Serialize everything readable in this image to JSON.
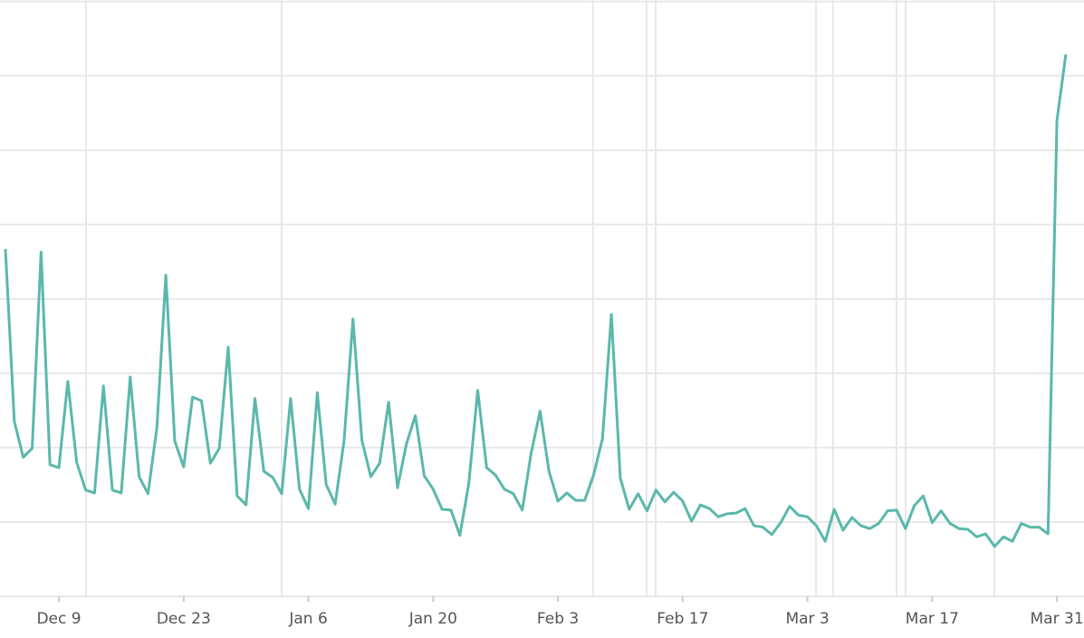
{
  "chart_data": {
    "type": "line",
    "categories": [
      null,
      null,
      null,
      null,
      null,
      null,
      "Dec 9",
      null,
      null,
      null,
      null,
      null,
      null,
      null,
      null,
      null,
      null,
      null,
      null,
      null,
      "Dec 23",
      null,
      null,
      null,
      null,
      null,
      null,
      null,
      null,
      null,
      null,
      null,
      null,
      null,
      "Jan 6",
      null,
      null,
      null,
      null,
      null,
      null,
      null,
      null,
      null,
      null,
      null,
      null,
      null,
      "Jan 20",
      null,
      null,
      null,
      null,
      null,
      null,
      null,
      null,
      null,
      null,
      null,
      null,
      null,
      "Feb 3",
      null,
      null,
      null,
      null,
      null,
      null,
      null,
      null,
      null,
      null,
      null,
      null,
      null,
      "Feb 17",
      null,
      null,
      null,
      null,
      null,
      null,
      null,
      null,
      null,
      null,
      null,
      null,
      null,
      "Mar 3",
      null,
      null,
      null,
      null,
      null,
      null,
      null,
      null,
      null,
      null,
      null,
      null,
      null,
      "Mar 17",
      null,
      null,
      null,
      null,
      null,
      null,
      null,
      null,
      null,
      null,
      null,
      null,
      null,
      "Mar 31",
      null
    ],
    "series": [
      {
        "color": "#5bb8ab",
        "values": [
          4.67,
          2.35,
          1.87,
          1.99,
          4.63,
          1.77,
          1.73,
          2.89,
          1.8,
          1.43,
          1.39,
          2.83,
          1.43,
          1.39,
          2.95,
          1.61,
          1.38,
          2.27,
          4.32,
          2.09,
          1.74,
          2.68,
          2.63,
          1.79,
          1.99,
          3.35,
          1.35,
          1.23,
          2.66,
          1.68,
          1.6,
          1.38,
          2.66,
          1.44,
          1.18,
          2.74,
          1.5,
          1.24,
          2.09,
          3.73,
          2.1,
          1.61,
          1.79,
          2.61,
          1.46,
          2.05,
          2.43,
          1.62,
          1.44,
          1.17,
          1.16,
          0.82,
          1.52,
          2.77,
          1.73,
          1.63,
          1.44,
          1.38,
          1.16,
          1.93,
          2.49,
          1.68,
          1.28,
          1.39,
          1.29,
          1.29,
          1.63,
          2.12,
          3.79,
          1.59,
          1.17,
          1.38,
          1.15,
          1.43,
          1.27,
          1.4,
          1.28,
          1.01,
          1.23,
          1.18,
          1.07,
          1.11,
          1.12,
          1.18,
          0.95,
          0.93,
          0.83,
          0.99,
          1.21,
          1.09,
          1.07,
          0.95,
          0.74,
          1.17,
          0.89,
          1.06,
          0.95,
          0.91,
          0.98,
          1.15,
          1.16,
          0.91,
          1.22,
          1.35,
          0.99,
          1.15,
          0.98,
          0.91,
          0.9,
          0.8,
          0.84,
          0.67,
          0.8,
          0.74,
          0.98,
          0.93,
          0.93,
          0.84,
          6.4,
          7.29
        ]
      }
    ],
    "ylim": [
      0,
      8.02
    ],
    "yticks": [
      0,
      1,
      2,
      3,
      4,
      5,
      6,
      7,
      8
    ],
    "grid": true
  }
}
